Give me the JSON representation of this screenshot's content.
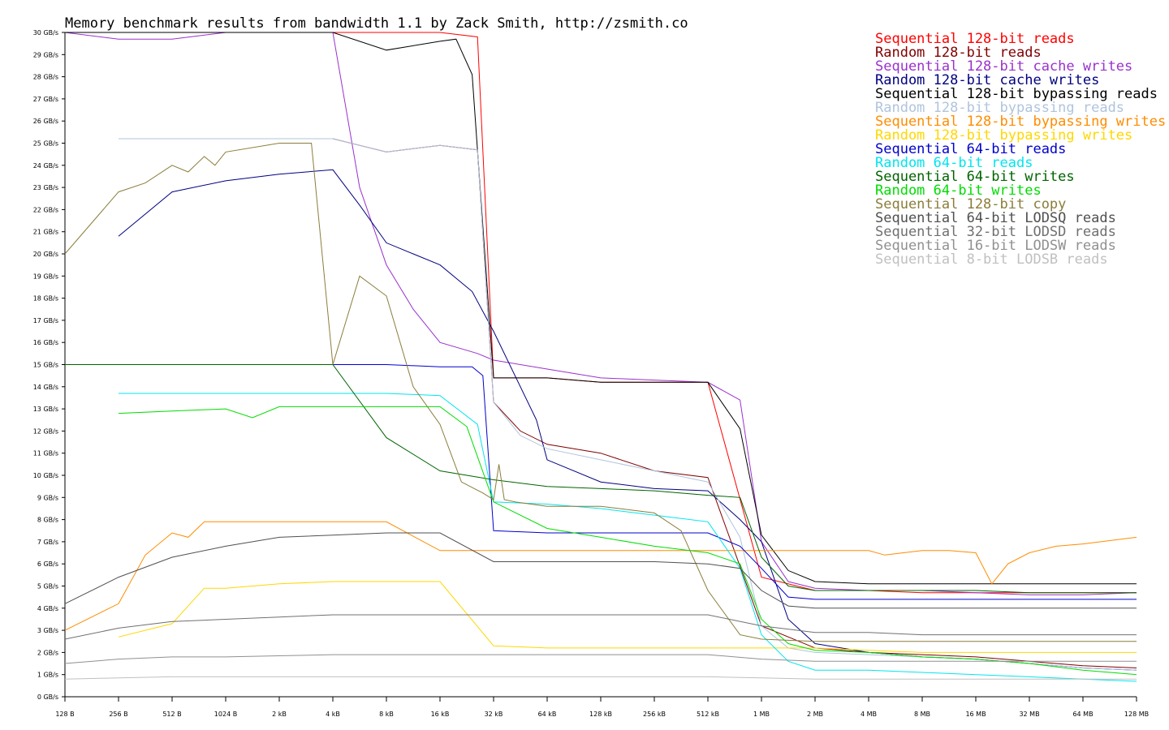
{
  "chart_data": {
    "type": "line",
    "title": "Memory benchmark results from bandwidth 1.1 by Zack Smith, http://zsmith.co",
    "x_scale": "log2",
    "x_ticks": [
      "128 B",
      "256 B",
      "512 B",
      "1024 B",
      "2 kB",
      "4 kB",
      "8 kB",
      "16 kB",
      "32 kB",
      "64 kB",
      "128 kB",
      "256 kB",
      "512 kB",
      "1 MB",
      "2 MB",
      "4 MB",
      "8 MB",
      "16 MB",
      "32 MB",
      "64 MB",
      "128 MB"
    ],
    "y_ticks": [
      "0 GB/s",
      "1 GB/s",
      "2 GB/s",
      "3 GB/s",
      "4 GB/s",
      "5 GB/s",
      "6 GB/s",
      "7 GB/s",
      "8 GB/s",
      "9 GB/s",
      "10 GB/s",
      "11 GB/s",
      "12 GB/s",
      "13 GB/s",
      "14 GB/s",
      "15 GB/s",
      "16 GB/s",
      "17 GB/s",
      "18 GB/s",
      "19 GB/s",
      "20 GB/s",
      "21 GB/s",
      "22 GB/s",
      "23 GB/s",
      "24 GB/s",
      "25 GB/s",
      "26 GB/s",
      "27 GB/s",
      "28 GB/s",
      "29 GB/s",
      "30 GB/s"
    ],
    "ylim": [
      0,
      30
    ],
    "x_unit_note": "x values are tick indices: 0 = 128 B, each step doubles the size",
    "legend_position": "top-right",
    "series": [
      {
        "name": "Sequential 128-bit reads",
        "color": "#ff0000",
        "x": [
          0,
          1,
          2,
          3,
          4,
          5,
          6,
          7,
          7.7,
          8,
          9,
          10,
          11,
          12,
          13,
          14,
          15,
          16,
          17,
          18,
          19,
          20
        ],
        "y": [
          30,
          30,
          30,
          30,
          30,
          30,
          30,
          30,
          29.8,
          14.4,
          14.4,
          14.2,
          14.2,
          14.2,
          5.4,
          4.8,
          4.8,
          4.7,
          4.7,
          4.7,
          4.7,
          4.7
        ]
      },
      {
        "name": "Random 128-bit reads",
        "color": "#800000",
        "x": [
          1,
          2,
          3,
          4,
          5,
          6,
          7,
          7.7,
          8,
          8.5,
          9,
          10,
          11,
          12,
          13,
          14,
          15,
          16,
          17,
          18,
          19,
          20
        ],
        "y": [
          25.2,
          25.2,
          25.2,
          25.2,
          25.2,
          24.6,
          24.9,
          24.7,
          13.3,
          12.0,
          11.4,
          11.0,
          10.2,
          9.9,
          3.2,
          2.2,
          2.0,
          1.9,
          1.8,
          1.6,
          1.4,
          1.3
        ]
      },
      {
        "name": "Sequential 128-bit cache writes",
        "color": "#9932cc",
        "x": [
          0,
          1,
          2,
          3,
          4,
          5,
          5.5,
          6,
          6.5,
          7,
          7.7,
          8,
          9,
          10,
          11,
          12,
          12.6,
          13,
          13.5,
          14,
          15,
          16,
          17,
          18,
          19,
          20
        ],
        "y": [
          30,
          29.7,
          29.7,
          30,
          30,
          30,
          23,
          19.5,
          17.5,
          16,
          15.5,
          15.2,
          14.8,
          14.4,
          14.3,
          14.2,
          13.4,
          7.0,
          5.2,
          4.9,
          4.8,
          4.8,
          4.7,
          4.6,
          4.6,
          4.7
        ]
      },
      {
        "name": "Random 128-bit cache writes",
        "color": "#000080",
        "x": [
          1,
          2,
          3,
          4,
          5,
          5.5,
          6,
          6.5,
          7,
          7.6,
          8,
          8.8,
          9,
          10,
          11,
          12,
          12.6,
          13,
          13.5,
          14,
          15,
          16,
          17,
          18,
          19,
          20
        ],
        "y": [
          20.8,
          22.8,
          23.3,
          23.6,
          23.8,
          22.2,
          20.5,
          20.0,
          19.5,
          18.3,
          16.5,
          12.5,
          10.7,
          9.7,
          9.4,
          9.3,
          8.0,
          7.0,
          3.5,
          2.4,
          2.0,
          1.8,
          1.7,
          1.5,
          1.3,
          1.2
        ]
      },
      {
        "name": "Sequential 128-bit bypassing reads",
        "color": "#000000",
        "x": [
          0,
          1,
          2,
          3,
          4,
          5,
          6,
          7,
          7.3,
          7.6,
          8,
          9,
          10,
          11,
          12,
          12.6,
          13,
          13.5,
          14,
          15,
          16,
          17,
          18,
          19,
          20
        ],
        "y": [
          30,
          30,
          30,
          30,
          30,
          30,
          29.2,
          29.6,
          29.7,
          28.1,
          14.4,
          14.4,
          14.2,
          14.2,
          14.2,
          12.1,
          7.3,
          5.7,
          5.2,
          5.1,
          5.1,
          5.1,
          5.1,
          5.1,
          5.1
        ]
      },
      {
        "name": "Random 128-bit bypassing reads",
        "color": "#b0c4de",
        "x": [
          1,
          2,
          3,
          4,
          5,
          6,
          7,
          7.7,
          8,
          8.5,
          9,
          10,
          11,
          12,
          12.6,
          13,
          13.5,
          14,
          15,
          16,
          17,
          18,
          19,
          20
        ],
        "y": [
          25.2,
          25.2,
          25.2,
          25.2,
          25.2,
          24.6,
          24.9,
          24.7,
          13.3,
          11.8,
          11.2,
          10.7,
          10.2,
          9.7,
          7.2,
          3.2,
          2.2,
          2.0,
          1.9,
          1.8,
          1.7,
          1.5,
          1.3,
          1.2
        ]
      },
      {
        "name": "Sequential 128-bit bypassing writes",
        "color": "#ff8c00",
        "x": [
          0,
          1,
          1.5,
          2,
          2.3,
          2.6,
          3,
          4,
          5,
          6,
          7,
          8,
          9,
          10,
          11,
          12,
          13,
          14,
          15,
          15.3,
          16,
          16.5,
          17,
          17.3,
          17.6,
          18,
          18.5,
          19,
          20
        ],
        "y": [
          3.0,
          4.2,
          6.4,
          7.4,
          7.2,
          7.9,
          7.9,
          7.9,
          7.9,
          7.9,
          6.6,
          6.6,
          6.6,
          6.6,
          6.6,
          6.6,
          6.6,
          6.6,
          6.6,
          6.4,
          6.6,
          6.6,
          6.5,
          5.1,
          6.0,
          6.5,
          6.8,
          6.9,
          7.2
        ]
      },
      {
        "name": "Random 128-bit bypassing writes",
        "color": "#ffd700",
        "x": [
          1,
          2,
          2.6,
          3,
          4,
          5,
          6,
          7,
          8,
          9,
          10,
          11,
          12,
          13,
          14,
          15,
          16,
          17,
          18,
          19,
          20
        ],
        "y": [
          2.7,
          3.3,
          4.9,
          4.9,
          5.1,
          5.2,
          5.2,
          5.2,
          2.3,
          2.2,
          2.2,
          2.2,
          2.2,
          2.2,
          2.2,
          2.1,
          2.0,
          2.0,
          2.0,
          2.0,
          2.0
        ]
      },
      {
        "name": "Sequential 64-bit reads",
        "color": "#0000cd",
        "x": [
          0,
          1,
          2,
          3,
          4,
          5,
          6,
          7,
          7.6,
          7.8,
          8,
          9,
          10,
          11,
          12,
          12.6,
          13,
          13.5,
          14,
          15,
          16,
          17,
          18,
          19,
          20
        ],
        "y": [
          15,
          15,
          15,
          15,
          15,
          15,
          15,
          14.9,
          14.9,
          14.5,
          7.5,
          7.4,
          7.4,
          7.4,
          7.4,
          6.8,
          5.8,
          4.5,
          4.4,
          4.4,
          4.4,
          4.4,
          4.4,
          4.4,
          4.4
        ]
      },
      {
        "name": "Random 64-bit reads",
        "color": "#00e5ee",
        "x": [
          1,
          2,
          3,
          4,
          5,
          6,
          7,
          7.7,
          8,
          9,
          10,
          11,
          12,
          12.6,
          13,
          13.5,
          14,
          15,
          16,
          17,
          18,
          19,
          20
        ],
        "y": [
          13.7,
          13.7,
          13.7,
          13.7,
          13.7,
          13.7,
          13.6,
          12.3,
          8.8,
          8.7,
          8.5,
          8.2,
          7.9,
          5.8,
          2.8,
          1.6,
          1.2,
          1.2,
          1.1,
          1.0,
          0.9,
          0.8,
          0.7
        ]
      },
      {
        "name": "Sequential 64-bit writes",
        "color": "#006400",
        "x": [
          0,
          1,
          2,
          3,
          4,
          5,
          6,
          7,
          8,
          9,
          10,
          11,
          12,
          12.6,
          13,
          13.5,
          14,
          15,
          16,
          17,
          18,
          19,
          20
        ],
        "y": [
          15,
          15,
          15,
          15,
          15,
          15,
          11.7,
          10.2,
          9.8,
          9.5,
          9.4,
          9.3,
          9.1,
          9.0,
          6.3,
          5.0,
          4.8,
          4.8,
          4.8,
          4.8,
          4.7,
          4.7,
          4.7
        ]
      },
      {
        "name": "Random 64-bit writes",
        "color": "#00dd00",
        "x": [
          1,
          2,
          3,
          3.5,
          4,
          5,
          6,
          7,
          7.5,
          8,
          9,
          10,
          11,
          12,
          12.6,
          13,
          13.5,
          14,
          15,
          16,
          17,
          18,
          19,
          20
        ],
        "y": [
          12.8,
          12.9,
          13.0,
          12.6,
          13.1,
          13.1,
          13.1,
          13.1,
          12.2,
          8.8,
          7.6,
          7.2,
          6.8,
          6.5,
          6.0,
          3.5,
          2.4,
          2.1,
          2.0,
          1.8,
          1.7,
          1.5,
          1.2,
          1.0
        ]
      },
      {
        "name": "Sequential 128-bit copy",
        "color": "#8b7d3a",
        "x": [
          0,
          1,
          1.5,
          2,
          2.3,
          2.6,
          2.8,
          3,
          4,
          4.6,
          5,
          5.5,
          6,
          6.5,
          7,
          7.4,
          7.8,
          8,
          8.1,
          8.2,
          8.4,
          9,
          10,
          11,
          11.5,
          12,
          12.6,
          13,
          14,
          15,
          16,
          17,
          18,
          19,
          20
        ],
        "y": [
          20,
          22.8,
          23.2,
          24.0,
          23.7,
          24.4,
          24.0,
          24.6,
          25.0,
          25.0,
          15,
          19.0,
          18.1,
          14,
          12.3,
          9.7,
          9.2,
          8.9,
          10.5,
          8.9,
          8.8,
          8.6,
          8.6,
          8.3,
          7.5,
          4.8,
          2.8,
          2.6,
          2.5,
          2.5,
          2.5,
          2.5,
          2.5,
          2.5,
          2.5
        ]
      },
      {
        "name": "Sequential 64-bit LODSQ reads",
        "color": "#505050",
        "x": [
          0,
          1,
          2,
          3,
          4,
          5,
          6,
          7,
          8,
          9,
          10,
          11,
          12,
          12.6,
          13,
          13.5,
          14,
          15,
          16,
          17,
          18,
          19,
          20
        ],
        "y": [
          4.2,
          5.4,
          6.3,
          6.8,
          7.2,
          7.3,
          7.4,
          7.4,
          6.1,
          6.1,
          6.1,
          6.1,
          6.0,
          5.8,
          4.8,
          4.1,
          4.0,
          4.0,
          4.0,
          4.0,
          4.0,
          4.0,
          4.0
        ]
      },
      {
        "name": "Sequential 32-bit LODSD reads",
        "color": "#707070",
        "x": [
          0,
          1,
          2,
          3,
          4,
          5,
          6,
          7,
          8,
          9,
          10,
          11,
          12,
          13,
          14,
          15,
          16,
          17,
          18,
          19,
          20
        ],
        "y": [
          2.6,
          3.1,
          3.4,
          3.5,
          3.6,
          3.7,
          3.7,
          3.7,
          3.7,
          3.7,
          3.7,
          3.7,
          3.7,
          3.2,
          2.9,
          2.9,
          2.8,
          2.8,
          2.8,
          2.8,
          2.8
        ]
      },
      {
        "name": "Sequential 16-bit LODSW reads",
        "color": "#909090",
        "x": [
          0,
          1,
          2,
          3,
          4,
          5,
          6,
          7,
          8,
          9,
          10,
          11,
          12,
          13,
          14,
          15,
          16,
          17,
          18,
          19,
          20
        ],
        "y": [
          1.5,
          1.7,
          1.8,
          1.8,
          1.85,
          1.9,
          1.9,
          1.9,
          1.9,
          1.9,
          1.9,
          1.9,
          1.9,
          1.7,
          1.6,
          1.6,
          1.6,
          1.6,
          1.6,
          1.6,
          1.6
        ]
      },
      {
        "name": "Sequential 8-bit LODSB reads",
        "color": "#c0c0c0",
        "x": [
          0,
          1,
          2,
          3,
          4,
          5,
          6,
          7,
          8,
          9,
          10,
          11,
          12,
          13,
          14,
          15,
          16,
          17,
          18,
          19,
          20
        ],
        "y": [
          0.8,
          0.85,
          0.9,
          0.9,
          0.9,
          0.9,
          0.9,
          0.9,
          0.9,
          0.9,
          0.9,
          0.9,
          0.9,
          0.85,
          0.8,
          0.8,
          0.8,
          0.8,
          0.8,
          0.8,
          0.8
        ]
      }
    ]
  }
}
